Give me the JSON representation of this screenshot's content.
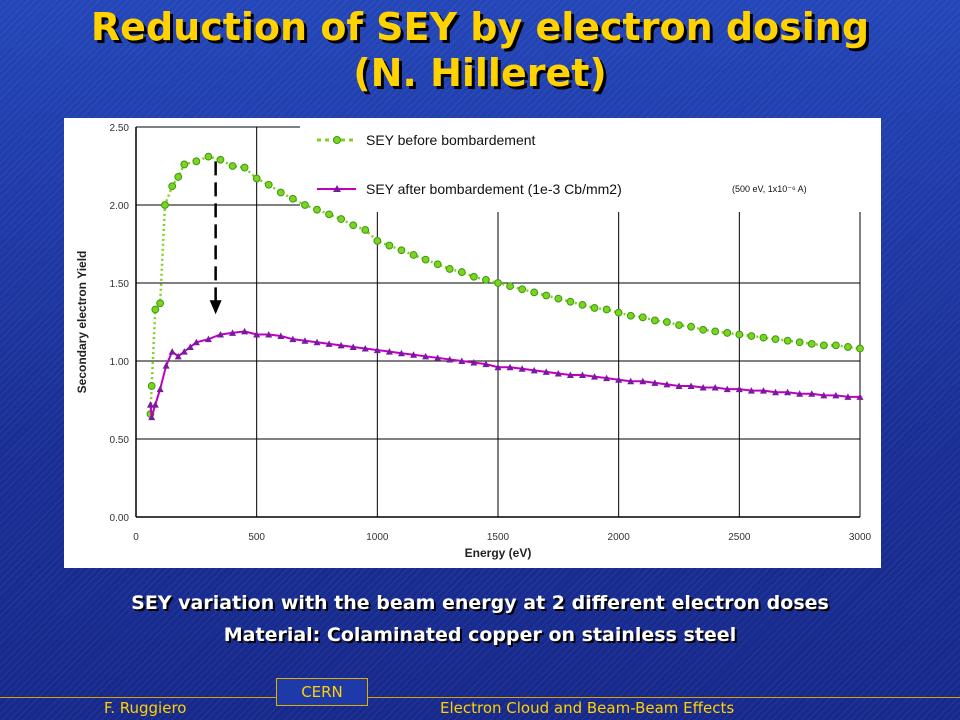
{
  "slide": {
    "title_line1": "Reduction of SEY by electron dosing",
    "title_line2": "(N. Hilleret)",
    "caption_line1": "SEY variation with the beam energy at 2 different electron doses",
    "caption_line2": "Material: Colaminated copper on stainless steel",
    "footer_left": "F. Ruggiero",
    "footer_center": "CERN",
    "footer_right": "Electron Cloud and Beam-Beam Effects"
  },
  "colors": {
    "title": "#ffd200",
    "before_series": "#7ed321",
    "after_series": "#c000c0",
    "background": "#1f3aa6"
  },
  "chart_data": {
    "type": "line",
    "xlabel": "Energy (eV)",
    "ylabel": "Secondary electron Yield",
    "xlim": [
      0,
      3000
    ],
    "ylim": [
      0,
      2.5
    ],
    "x_ticks": [
      "0",
      "500",
      "1000",
      "1500",
      "2000",
      "2500",
      "3000"
    ],
    "y_ticks": [
      "0.00",
      "0.50",
      "1.00",
      "1.50",
      "2.00",
      "2.50"
    ],
    "grid": true,
    "legend_position": "top-right",
    "annotation": "(500 eV, 1x10⁻⁶ A)",
    "series": [
      {
        "name": "SEY before bombardement",
        "style": "dotted-circles",
        "points": [
          [
            60,
            0.66
          ],
          [
            65,
            0.84
          ],
          [
            80,
            1.33
          ],
          [
            100,
            1.37
          ],
          [
            120,
            2.0
          ],
          [
            150,
            2.12
          ],
          [
            175,
            2.18
          ],
          [
            200,
            2.26
          ],
          [
            250,
            2.28
          ],
          [
            300,
            2.31
          ],
          [
            350,
            2.29
          ],
          [
            400,
            2.25
          ],
          [
            450,
            2.24
          ],
          [
            500,
            2.17
          ],
          [
            550,
            2.13
          ],
          [
            600,
            2.08
          ],
          [
            650,
            2.04
          ],
          [
            700,
            2.0
          ],
          [
            750,
            1.97
          ],
          [
            800,
            1.94
          ],
          [
            850,
            1.91
          ],
          [
            900,
            1.87
          ],
          [
            950,
            1.84
          ],
          [
            1000,
            1.77
          ],
          [
            1050,
            1.74
          ],
          [
            1100,
            1.71
          ],
          [
            1150,
            1.68
          ],
          [
            1200,
            1.65
          ],
          [
            1250,
            1.62
          ],
          [
            1300,
            1.59
          ],
          [
            1350,
            1.57
          ],
          [
            1400,
            1.54
          ],
          [
            1450,
            1.52
          ],
          [
            1500,
            1.5
          ],
          [
            1550,
            1.48
          ],
          [
            1600,
            1.46
          ],
          [
            1650,
            1.44
          ],
          [
            1700,
            1.42
          ],
          [
            1750,
            1.4
          ],
          [
            1800,
            1.38
          ],
          [
            1850,
            1.36
          ],
          [
            1900,
            1.34
          ],
          [
            1950,
            1.33
          ],
          [
            2000,
            1.31
          ],
          [
            2050,
            1.29
          ],
          [
            2100,
            1.28
          ],
          [
            2150,
            1.26
          ],
          [
            2200,
            1.25
          ],
          [
            2250,
            1.23
          ],
          [
            2300,
            1.22
          ],
          [
            2350,
            1.2
          ],
          [
            2400,
            1.19
          ],
          [
            2450,
            1.18
          ],
          [
            2500,
            1.17
          ],
          [
            2550,
            1.16
          ],
          [
            2600,
            1.15
          ],
          [
            2650,
            1.14
          ],
          [
            2700,
            1.13
          ],
          [
            2750,
            1.12
          ],
          [
            2800,
            1.11
          ],
          [
            2850,
            1.1
          ],
          [
            2900,
            1.1
          ],
          [
            2950,
            1.09
          ],
          [
            3000,
            1.08
          ]
        ]
      },
      {
        "name": "SEY after bombardement (1e-3 Cb/mm2)",
        "style": "line-triangles",
        "points": [
          [
            60,
            0.72
          ],
          [
            65,
            0.64
          ],
          [
            80,
            0.72
          ],
          [
            100,
            0.82
          ],
          [
            125,
            0.97
          ],
          [
            150,
            1.06
          ],
          [
            175,
            1.03
          ],
          [
            200,
            1.06
          ],
          [
            225,
            1.09
          ],
          [
            250,
            1.12
          ],
          [
            300,
            1.14
          ],
          [
            350,
            1.17
          ],
          [
            400,
            1.18
          ],
          [
            450,
            1.19
          ],
          [
            500,
            1.17
          ],
          [
            550,
            1.17
          ],
          [
            600,
            1.16
          ],
          [
            650,
            1.14
          ],
          [
            700,
            1.13
          ],
          [
            750,
            1.12
          ],
          [
            800,
            1.11
          ],
          [
            850,
            1.1
          ],
          [
            900,
            1.09
          ],
          [
            950,
            1.08
          ],
          [
            1000,
            1.07
          ],
          [
            1050,
            1.06
          ],
          [
            1100,
            1.05
          ],
          [
            1150,
            1.04
          ],
          [
            1200,
            1.03
          ],
          [
            1250,
            1.02
          ],
          [
            1300,
            1.01
          ],
          [
            1350,
            1.0
          ],
          [
            1400,
            0.99
          ],
          [
            1450,
            0.98
          ],
          [
            1500,
            0.96
          ],
          [
            1550,
            0.96
          ],
          [
            1600,
            0.95
          ],
          [
            1650,
            0.94
          ],
          [
            1700,
            0.93
          ],
          [
            1750,
            0.92
          ],
          [
            1800,
            0.91
          ],
          [
            1850,
            0.91
          ],
          [
            1900,
            0.9
          ],
          [
            1950,
            0.89
          ],
          [
            2000,
            0.88
          ],
          [
            2050,
            0.87
          ],
          [
            2100,
            0.87
          ],
          [
            2150,
            0.86
          ],
          [
            2200,
            0.85
          ],
          [
            2250,
            0.84
          ],
          [
            2300,
            0.84
          ],
          [
            2350,
            0.83
          ],
          [
            2400,
            0.83
          ],
          [
            2450,
            0.82
          ],
          [
            2500,
            0.82
          ],
          [
            2550,
            0.81
          ],
          [
            2600,
            0.81
          ],
          [
            2650,
            0.8
          ],
          [
            2700,
            0.8
          ],
          [
            2750,
            0.79
          ],
          [
            2800,
            0.79
          ],
          [
            2850,
            0.78
          ],
          [
            2900,
            0.78
          ],
          [
            2950,
            0.77
          ],
          [
            3000,
            0.77
          ]
        ]
      }
    ],
    "arrow": {
      "from": [
        330,
        2.28
      ],
      "to": [
        330,
        1.3
      ]
    }
  }
}
